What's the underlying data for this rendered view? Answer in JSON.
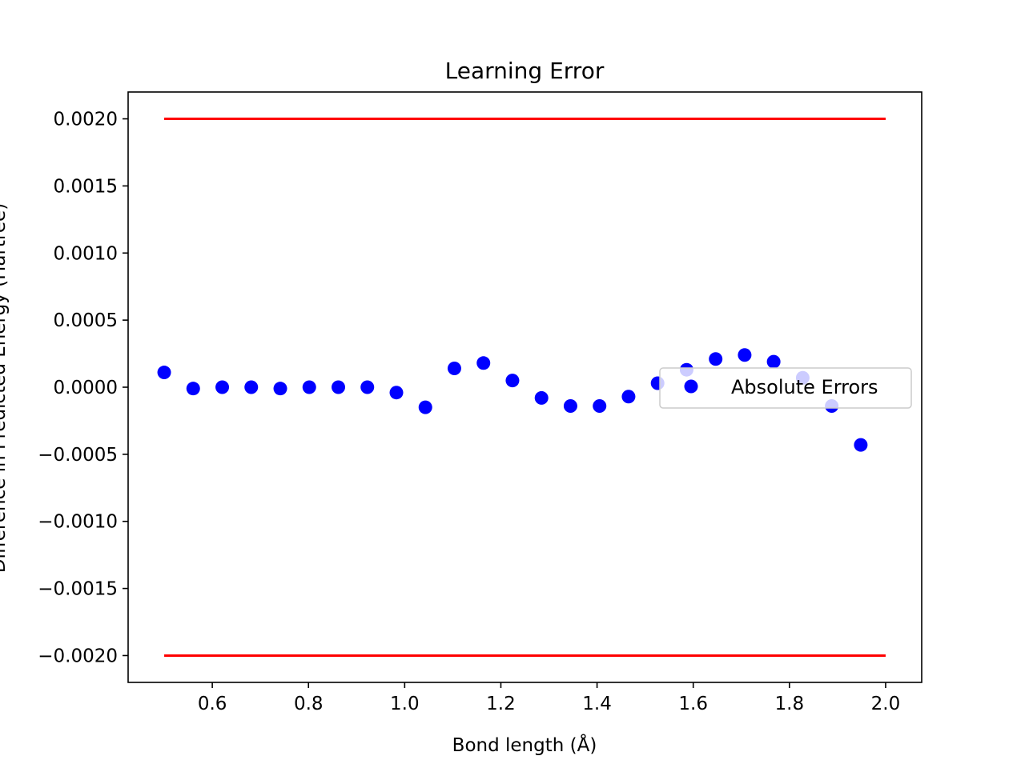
{
  "chart_data": {
    "type": "scatter",
    "title": "Learning Error",
    "xlabel": "Bond length (Å)",
    "ylabel": "Difference in Predicted Energy (Hartree)",
    "xlim": [
      0.425,
      2.075
    ],
    "ylim": [
      -0.0022,
      0.0022
    ],
    "x_ticks": [
      0.6,
      0.8,
      1.0,
      1.2,
      1.4,
      1.6,
      1.8,
      2.0
    ],
    "x_tick_labels": [
      "0.6",
      "0.8",
      "1.0",
      "1.2",
      "1.4",
      "1.6",
      "1.8",
      "2.0"
    ],
    "y_ticks": [
      0.002,
      0.0015,
      0.001,
      0.0005,
      0.0,
      -0.0005,
      -0.001,
      -0.0015,
      -0.002
    ],
    "y_tick_labels": [
      "0.0020",
      "0.0015",
      "0.0010",
      "0.0005",
      "0.0000",
      "−0.0005",
      "−0.0010",
      "−0.0015",
      "−0.0020"
    ],
    "grid": false,
    "legend": {
      "position": "center-right",
      "entries": [
        "Absolute Errors"
      ]
    },
    "series": [
      {
        "name": "Absolute Errors",
        "kind": "scatter",
        "color": "#0000ff",
        "x": [
          0.5,
          0.5603,
          0.6207,
          0.681,
          0.7414,
          0.8017,
          0.8621,
          0.9224,
          0.9828,
          1.0431,
          1.1034,
          1.1638,
          1.2241,
          1.2845,
          1.3448,
          1.4052,
          1.4655,
          1.5259,
          1.5862,
          1.6466,
          1.7069,
          1.7672,
          1.8276,
          1.8879,
          1.9483
        ],
        "y": [
          0.00011,
          -1e-05,
          0.0,
          0.0,
          -1e-05,
          0.0,
          0.0,
          0.0,
          -4e-05,
          -0.00015,
          0.00014,
          0.00018,
          5e-05,
          -8e-05,
          -0.00014,
          -0.00014,
          -7e-05,
          3e-05,
          0.00013,
          0.00021,
          0.00024,
          0.00019,
          7e-05,
          -0.00014,
          -0.00043
        ]
      },
      {
        "kind": "line",
        "color": "#ff0000",
        "x": [
          0.5,
          2.0
        ],
        "y": [
          0.002,
          0.002
        ]
      },
      {
        "kind": "line",
        "color": "#ff0000",
        "x": [
          0.5,
          2.0
        ],
        "y": [
          -0.002,
          -0.002
        ]
      }
    ]
  }
}
